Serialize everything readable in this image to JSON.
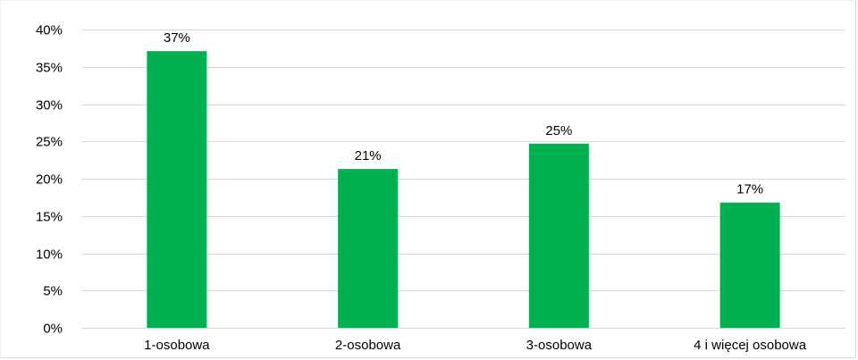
{
  "chart_data": {
    "type": "bar",
    "title": "",
    "xlabel": "",
    "ylabel": "",
    "categories": [
      "1-osobowa",
      "2-osobowa",
      "3-osobowa",
      "4 i więcej osobowa"
    ],
    "values": [
      37,
      21,
      25,
      17
    ],
    "exact_values": [
      37.1,
      21.3,
      24.7,
      16.8
    ],
    "data_labels": [
      "37%",
      "21%",
      "25%",
      "17%"
    ],
    "ylim": [
      0,
      40
    ],
    "y_ticks": [
      0,
      5,
      10,
      15,
      20,
      25,
      30,
      35,
      40
    ],
    "y_tick_labels": [
      "0%",
      "5%",
      "10%",
      "15%",
      "20%",
      "25%",
      "30%",
      "35%",
      "40%"
    ],
    "grid": true,
    "legend": "none",
    "colors": {
      "bar": "#00b050",
      "grid": "#d9d9d9",
      "axis": "#d9d9d9"
    }
  }
}
